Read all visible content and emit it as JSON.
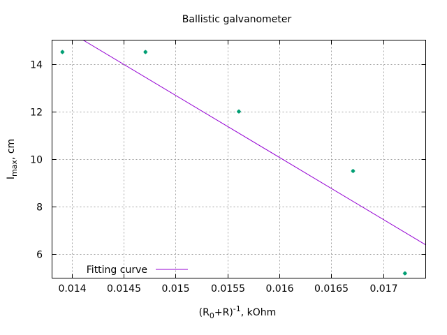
{
  "chart_data": {
    "type": "scatter",
    "title": "Ballistic galvanometer",
    "xlabel": {
      "paren_open": "(R",
      "sub": "0",
      "plus_r": "+R)",
      "sup": "-1",
      "unit": ", kOhm"
    },
    "ylabel": {
      "main": "I",
      "sub": "max",
      "unit": ", cm"
    },
    "xlim": [
      0.01381,
      0.01741
    ],
    "ylim": [
      5.0,
      15.0
    ],
    "x_ticks": [
      0.014,
      0.0145,
      0.015,
      0.0155,
      0.016,
      0.0165,
      0.017
    ],
    "x_tick_labels": [
      "0.014",
      "0.0145",
      "0.015",
      "0.0155",
      "0.016",
      "0.0165",
      "0.017"
    ],
    "y_ticks": [
      6,
      8,
      10,
      12,
      14
    ],
    "y_tick_labels": [
      "6",
      "8",
      "10",
      "12",
      "14"
    ],
    "grid": true,
    "series": [
      {
        "kind": "points",
        "color": "#009e73",
        "points": [
          {
            "x": 0.01391,
            "y": 14.5
          },
          {
            "x": 0.01471,
            "y": 14.5
          },
          {
            "x": 0.01561,
            "y": 12.0
          },
          {
            "x": 0.01671,
            "y": 9.5
          },
          {
            "x": 0.01721,
            "y": 5.2
          }
        ]
      },
      {
        "kind": "line",
        "name": "Fitting curve",
        "color": "#9400d3",
        "points": [
          {
            "x": 0.01411,
            "y": 15.0
          },
          {
            "x": 0.01741,
            "y": 6.4
          }
        ]
      }
    ],
    "legend": {
      "label": "Fitting curve",
      "placement": "bottom-left"
    }
  }
}
